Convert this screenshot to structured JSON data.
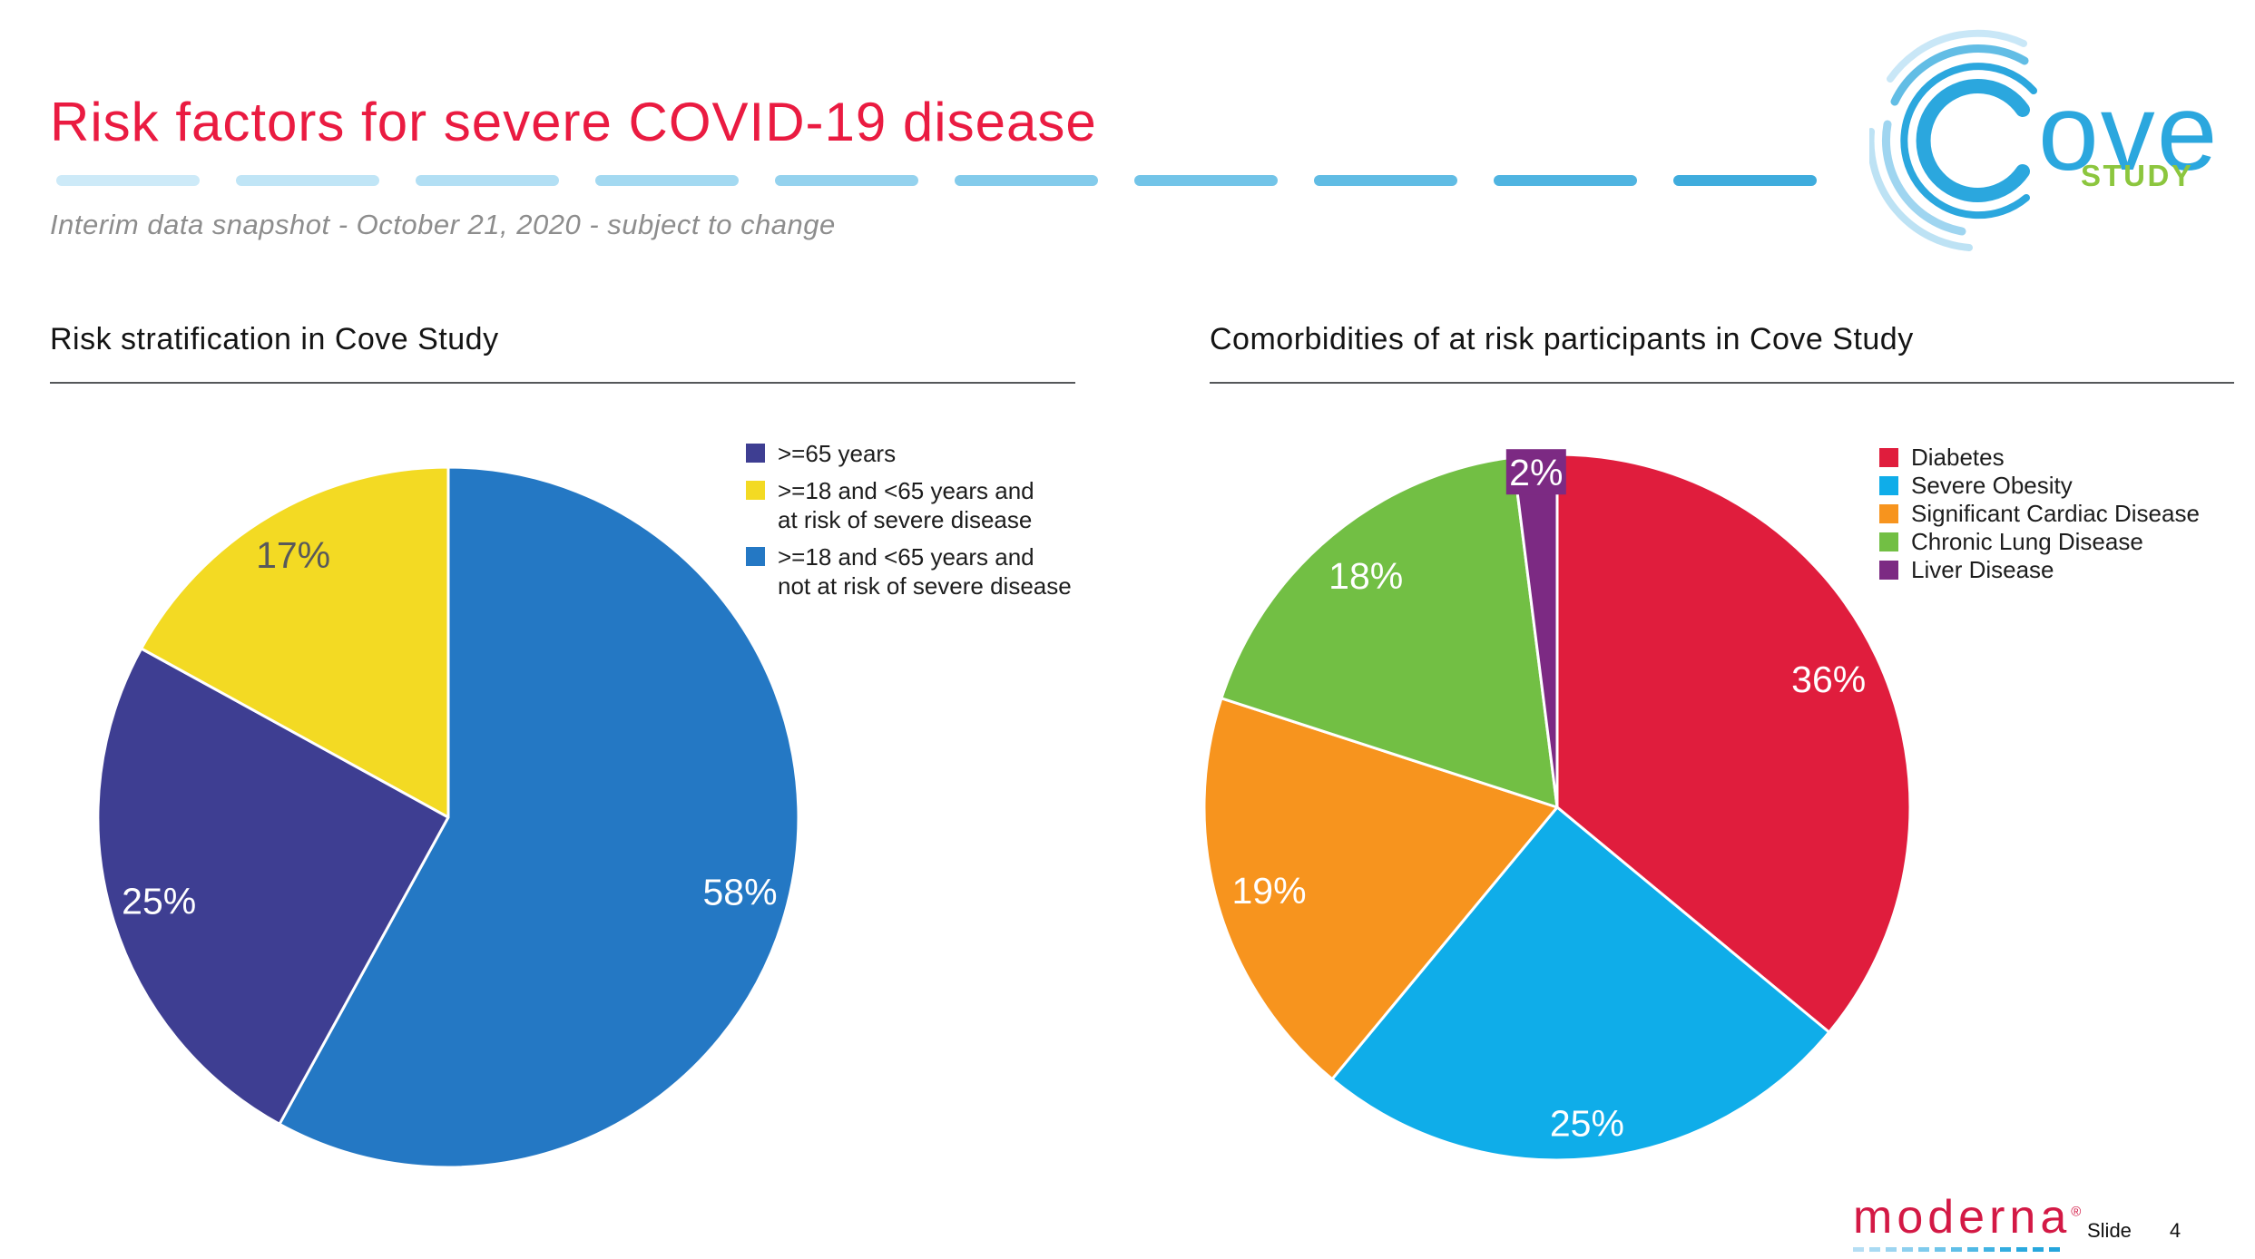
{
  "slide": {
    "title": "Risk factors for severe COVID-19 disease",
    "title_color": "#ea1b41",
    "subtitle": "Interim data snapshot - October 21, 2020 - subject to change",
    "divider_colors": [
      "#cdeaf8",
      "#c0e5f6",
      "#b2dff4",
      "#a3d9f1",
      "#94d2ee",
      "#83cbeb",
      "#72c4e8",
      "#60bce4",
      "#4fb4e1",
      "#3facdd"
    ],
    "logo": {
      "brand": "Cove",
      "brand_tail": "ove",
      "subtext": "STUDY",
      "blue": "#2ba7de",
      "green": "#8cc63e"
    }
  },
  "charts": [
    {
      "heading": "Risk stratification in Cove Study"
    },
    {
      "heading": "Comorbidities of at risk participants in Cove Study"
    }
  ],
  "chart_data": [
    {
      "type": "pie",
      "title": "Risk stratification in Cove Study",
      "start_angle": "12 o'clock",
      "direction": "clockwise",
      "legend_position": "right",
      "slices": [
        {
          "label": ">=18 and <65 years and not at risk of severe disease",
          "value": 58,
          "display": "58%",
          "color": "#2478c4",
          "text_color": "#ffffff",
          "label_r": 0.86
        },
        {
          "label": ">=65 years",
          "value": 25,
          "display": "25%",
          "color": "#3e3e92",
          "text_color": "#ffffff",
          "label_r": 0.86
        },
        {
          "label": ">=18 and <65 years and at risk of severe disease",
          "value": 17,
          "display": "17%",
          "color": "#f3da23",
          "text_color": "#58595b",
          "label_r": 0.87
        }
      ],
      "legend": [
        {
          "color": "#3e3e92",
          "lines": [
            ">=65 years"
          ]
        },
        {
          "color": "#f3da23",
          "lines": [
            ">=18 and <65 years and",
            "at risk of severe disease"
          ]
        },
        {
          "color": "#2478c4",
          "lines": [
            ">=18 and <65 years and",
            "not at risk of severe disease"
          ]
        }
      ]
    },
    {
      "type": "pie",
      "title": "Comorbidities of at risk participants in Cove Study",
      "start_angle": "12 o'clock",
      "direction": "clockwise",
      "legend_position": "right",
      "slices": [
        {
          "label": "Diabetes",
          "value": 36,
          "display": "36%",
          "color": "#e01d3d",
          "text_color": "#ffffff",
          "label_r": 0.85
        },
        {
          "label": "Severe Obesity",
          "value": 25,
          "display": "25%",
          "color": "#0fade9",
          "text_color": "#ffffff",
          "label_r": 0.9
        },
        {
          "label": "Significant Cardiac Disease",
          "value": 19,
          "display": "19%",
          "color": "#f7941e",
          "text_color": "#ffffff",
          "label_r": 0.85
        },
        {
          "label": "Chronic Lung Disease",
          "value": 18,
          "display": "18%",
          "color": "#72bf44",
          "text_color": "#ffffff",
          "label_r": 0.85
        },
        {
          "label": "Liver Disease",
          "value": 2,
          "display": "2%",
          "color": "#7c2a83",
          "text_color": "#ffffff",
          "label_r": 0.95,
          "label_bg": true
        }
      ],
      "legend": [
        {
          "color": "#e01d3d",
          "lines": [
            "Diabetes"
          ]
        },
        {
          "color": "#0fade9",
          "lines": [
            "Severe Obesity"
          ]
        },
        {
          "color": "#f7941e",
          "lines": [
            "Significant Cardiac Disease"
          ]
        },
        {
          "color": "#72bf44",
          "lines": [
            "Chronic Lung Disease"
          ]
        },
        {
          "color": "#7c2a83",
          "lines": [
            "Liver Disease"
          ]
        }
      ]
    }
  ],
  "footer": {
    "brand": "moderna",
    "reg_mark": "®",
    "brand_color": "#d31945",
    "dash_colors": [
      "#b5def4",
      "#a9daf3",
      "#9cd5f1",
      "#8ed0ef",
      "#7fcbed",
      "#70c5ea",
      "#60bfe8",
      "#50b9e5",
      "#41b3e3",
      "#33ade0",
      "#2aa9de",
      "#27a7dd",
      "#25a5dc"
    ],
    "slide_label": "Slide",
    "slide_number": "4"
  }
}
